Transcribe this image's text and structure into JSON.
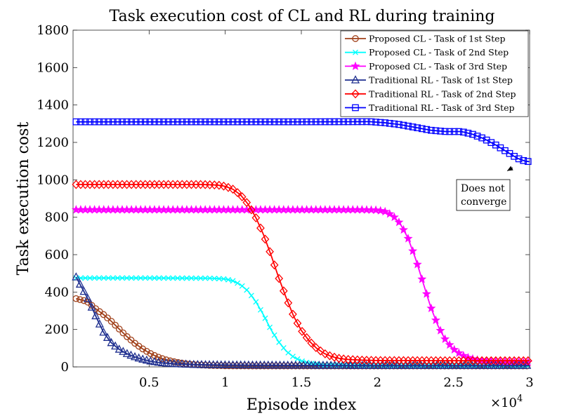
{
  "chart_data": {
    "type": "line",
    "title": "Task execution cost of CL and RL during training",
    "xlabel": "Episode index",
    "ylabel": "Task execution cost",
    "x_multiplier_label": "×10",
    "x_multiplier_exp": "4",
    "xlim": [
      0,
      3
    ],
    "ylim": [
      0,
      1800
    ],
    "xticks": [
      0.5,
      1,
      1.5,
      2,
      2.5,
      3
    ],
    "xtick_labels": [
      "0.5",
      "1",
      "1.5",
      "2",
      "2.5",
      "3"
    ],
    "yticks": [
      0,
      200,
      400,
      600,
      800,
      1000,
      1200,
      1400,
      1600,
      1800
    ],
    "ytick_labels": [
      "0",
      "200",
      "400",
      "600",
      "800",
      "1000",
      "1200",
      "1400",
      "1600",
      "1800"
    ],
    "legend_position": "top-right",
    "series": [
      {
        "name": "Proposed CL - Task of 1st Step",
        "color": "#a0401a",
        "marker": "circle",
        "values": [
          [
            0.02,
            365
          ],
          [
            0.07,
            355
          ],
          [
            0.1,
            345
          ],
          [
            0.15,
            310
          ],
          [
            0.2,
            280
          ],
          [
            0.25,
            245
          ],
          [
            0.3,
            205
          ],
          [
            0.35,
            165
          ],
          [
            0.4,
            130
          ],
          [
            0.45,
            100
          ],
          [
            0.5,
            75
          ],
          [
            0.55,
            55
          ],
          [
            0.6,
            40
          ],
          [
            0.65,
            30
          ],
          [
            0.7,
            22
          ],
          [
            0.75,
            16
          ],
          [
            0.8,
            12
          ],
          [
            0.9,
            8
          ],
          [
            1.0,
            6
          ],
          [
            1.2,
            5
          ],
          [
            1.5,
            5
          ],
          [
            2.0,
            5
          ],
          [
            2.5,
            5
          ],
          [
            3.0,
            5
          ]
        ]
      },
      {
        "name": "Proposed CL - Task of 2nd Step",
        "color": "#00ffff",
        "marker": "x",
        "values": [
          [
            0.02,
            475
          ],
          [
            0.5,
            475
          ],
          [
            0.9,
            474
          ],
          [
            1.0,
            470
          ],
          [
            1.05,
            460
          ],
          [
            1.1,
            440
          ],
          [
            1.15,
            405
          ],
          [
            1.2,
            350
          ],
          [
            1.25,
            280
          ],
          [
            1.3,
            200
          ],
          [
            1.35,
            135
          ],
          [
            1.4,
            85
          ],
          [
            1.45,
            52
          ],
          [
            1.5,
            32
          ],
          [
            1.55,
            20
          ],
          [
            1.6,
            14
          ],
          [
            1.7,
            10
          ],
          [
            1.8,
            8
          ],
          [
            2.0,
            7
          ],
          [
            2.5,
            6
          ],
          [
            3.0,
            6
          ]
        ]
      },
      {
        "name": "Proposed CL - Task of 3rd Step",
        "color": "#ff00ff",
        "marker": "star",
        "values": [
          [
            0.02,
            840
          ],
          [
            1.0,
            840
          ],
          [
            1.5,
            840
          ],
          [
            1.9,
            840
          ],
          [
            2.0,
            838
          ],
          [
            2.05,
            830
          ],
          [
            2.1,
            810
          ],
          [
            2.15,
            765
          ],
          [
            2.2,
            690
          ],
          [
            2.25,
            580
          ],
          [
            2.3,
            450
          ],
          [
            2.35,
            320
          ],
          [
            2.4,
            215
          ],
          [
            2.45,
            140
          ],
          [
            2.5,
            95
          ],
          [
            2.55,
            65
          ],
          [
            2.6,
            48
          ],
          [
            2.65,
            38
          ],
          [
            2.7,
            32
          ],
          [
            2.8,
            28
          ],
          [
            2.9,
            26
          ],
          [
            3.0,
            25
          ]
        ]
      },
      {
        "name": "Traditional RL - Task of 1st Step",
        "color": "#1f2f8f",
        "marker": "triangle",
        "values": [
          [
            0.02,
            480
          ],
          [
            0.06,
            420
          ],
          [
            0.1,
            360
          ],
          [
            0.15,
            270
          ],
          [
            0.2,
            185
          ],
          [
            0.25,
            130
          ],
          [
            0.3,
            95
          ],
          [
            0.35,
            72
          ],
          [
            0.4,
            55
          ],
          [
            0.45,
            42
          ],
          [
            0.5,
            32
          ],
          [
            0.55,
            25
          ],
          [
            0.6,
            20
          ],
          [
            0.7,
            15
          ],
          [
            0.8,
            12
          ],
          [
            1.0,
            10
          ],
          [
            1.5,
            8
          ],
          [
            2.0,
            7
          ],
          [
            2.5,
            7
          ],
          [
            3.0,
            7
          ]
        ]
      },
      {
        "name": "Traditional RL - Task of 2nd Step",
        "color": "#ff0000",
        "marker": "diamond",
        "values": [
          [
            0.02,
            975
          ],
          [
            0.5,
            975
          ],
          [
            0.85,
            975
          ],
          [
            0.95,
            972
          ],
          [
            1.0,
            965
          ],
          [
            1.05,
            950
          ],
          [
            1.1,
            920
          ],
          [
            1.15,
            870
          ],
          [
            1.2,
            800
          ],
          [
            1.25,
            710
          ],
          [
            1.3,
            600
          ],
          [
            1.35,
            480
          ],
          [
            1.4,
            370
          ],
          [
            1.45,
            270
          ],
          [
            1.5,
            195
          ],
          [
            1.55,
            140
          ],
          [
            1.6,
            100
          ],
          [
            1.65,
            72
          ],
          [
            1.7,
            55
          ],
          [
            1.75,
            45
          ],
          [
            1.8,
            40
          ],
          [
            1.9,
            36
          ],
          [
            2.0,
            34
          ],
          [
            2.5,
            33
          ],
          [
            3.0,
            33
          ]
        ]
      },
      {
        "name": "Traditional RL - Task of 3rd Step",
        "color": "#0000ff",
        "marker": "square",
        "values": [
          [
            0.02,
            1310
          ],
          [
            0.5,
            1310
          ],
          [
            1.0,
            1310
          ],
          [
            1.5,
            1310
          ],
          [
            1.95,
            1311
          ],
          [
            2.05,
            1305
          ],
          [
            2.15,
            1295
          ],
          [
            2.25,
            1280
          ],
          [
            2.35,
            1265
          ],
          [
            2.45,
            1258
          ],
          [
            2.55,
            1258
          ],
          [
            2.62,
            1245
          ],
          [
            2.7,
            1220
          ],
          [
            2.78,
            1185
          ],
          [
            2.85,
            1150
          ],
          [
            2.92,
            1115
          ],
          [
            2.97,
            1100
          ],
          [
            3.0,
            1097
          ]
        ]
      }
    ],
    "annotation": {
      "lines": [
        "Does not",
        "converge"
      ],
      "points_to": [
        2.88,
        1100
      ]
    }
  }
}
